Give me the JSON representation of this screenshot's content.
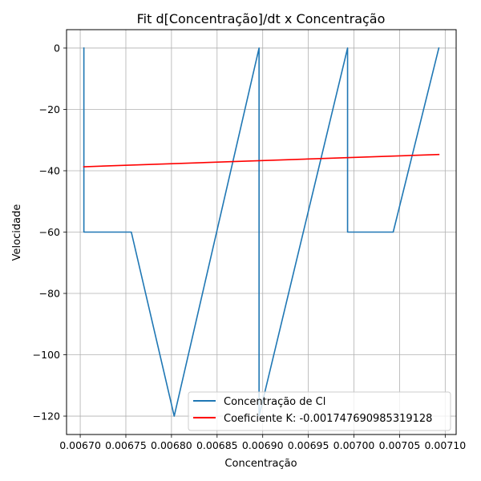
{
  "chart_data": {
    "type": "line",
    "title": "Fit d[Concentração]/dt x Concentração",
    "xlabel": "Concentração",
    "ylabel": "Velocidade",
    "xlim": [
      0.006685,
      0.007112
    ],
    "ylim": [
      -126,
      6
    ],
    "xticks": [
      0.0067,
      0.00675,
      0.0068,
      0.00685,
      0.0069,
      0.00695,
      0.007,
      0.00705,
      0.0071
    ],
    "xtick_labels": [
      "0.00670",
      "0.00675",
      "0.00680",
      "0.00685",
      "0.00690",
      "0.00695",
      "0.00700",
      "0.00705",
      "0.00710"
    ],
    "yticks": [
      0,
      -20,
      -40,
      -60,
      -80,
      -100,
      -120
    ],
    "ytick_labels": [
      "0",
      "−20",
      "−40",
      "−60",
      "−80",
      "−100",
      "−120"
    ],
    "grid": true,
    "legend_position": "lower-right",
    "series": [
      {
        "name": "Concentração de Cl",
        "color": "#1f77b4",
        "x": [
          0.006704,
          0.006704,
          0.006704,
          0.006756,
          0.006803,
          0.006896,
          0.006896,
          0.006896,
          0.006993,
          0.006993,
          0.006993,
          0.007043,
          0.007093
        ],
        "y": [
          0,
          -60,
          -60,
          -60,
          -120,
          0,
          -120,
          -120,
          0,
          -60,
          -60,
          -60,
          0
        ]
      },
      {
        "name": "Coeficiente K: -0.0017476909853191​28",
        "color": "#ff0000",
        "x": [
          0.006704,
          0.007093
        ],
        "y": [
          -38.7,
          -34.7
        ]
      }
    ]
  }
}
